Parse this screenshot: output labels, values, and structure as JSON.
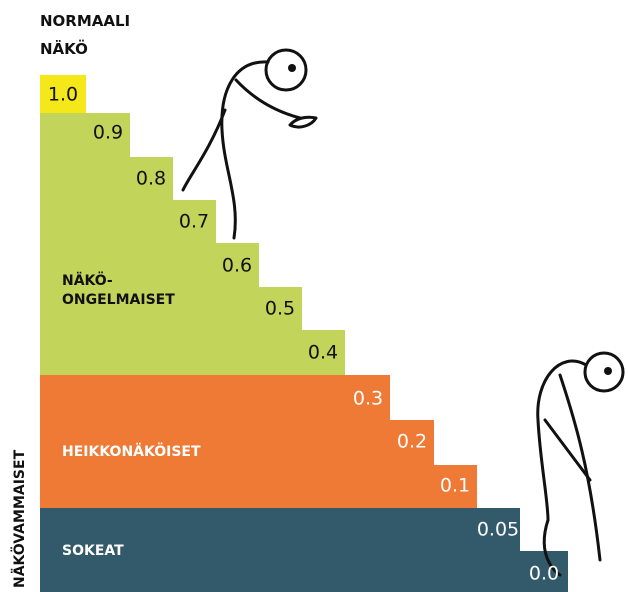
{
  "header": {
    "lines": [
      "NORMAALI",
      "NÄKÖ"
    ]
  },
  "steps": [
    "1.0",
    "0.9",
    "0.8",
    "0.7",
    "0.6",
    "0.5",
    "0.4",
    "0.3",
    "0.2",
    "0.1",
    "0.05",
    "0.0"
  ],
  "regions": [
    {
      "lines": [
        "NÄKÖ-",
        "ONGELMAISET"
      ]
    },
    {
      "lines": [
        "HEIKKONÄKÖISET"
      ]
    },
    {
      "lines": [
        "SOKEAT"
      ]
    }
  ],
  "side_label": "NÄKÖVAMMAISET"
}
